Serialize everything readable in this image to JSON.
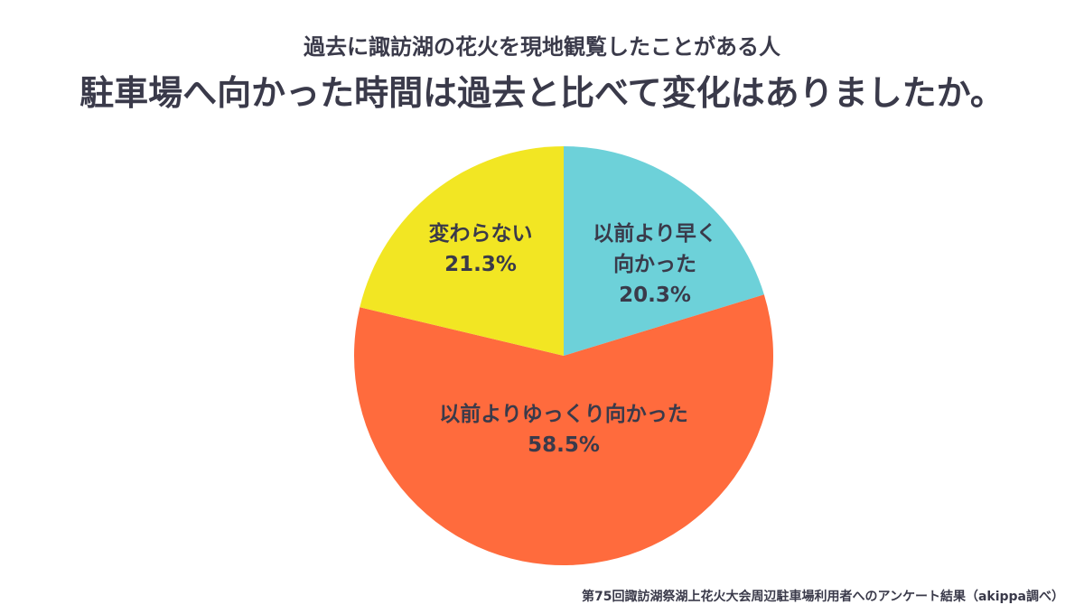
{
  "header": {
    "subtitle": "過去に諏訪湖の花火を現地観覧したことがある人",
    "title": "駐車場へ向かった時間は過去と比べて変化はありましたか。"
  },
  "chart_data": {
    "type": "pie",
    "title": "駐車場へ向かった時間は過去と比べて変化はありましたか。",
    "subtitle": "過去に諏訪湖の花火を現地観覧したことがある人",
    "slices": [
      {
        "label_lines": [
          "以前より早く",
          "向かった"
        ],
        "percent_text": "20.3%",
        "value": 20.3,
        "color": "#6dd1d9"
      },
      {
        "label_lines": [
          "以前よりゆっくり向かった"
        ],
        "percent_text": "58.5%",
        "value": 58.5,
        "color": "#ff6b3d"
      },
      {
        "label_lines": [
          "変わらない"
        ],
        "percent_text": "21.3%",
        "value": 21.3,
        "color": "#f2e623"
      }
    ],
    "start": "12 o'clock",
    "direction": "clockwise"
  },
  "footer": {
    "source": "第75回諏訪湖祭湖上花火大会周辺駐車場利用者へのアンケート結果（akippa調べ）"
  }
}
